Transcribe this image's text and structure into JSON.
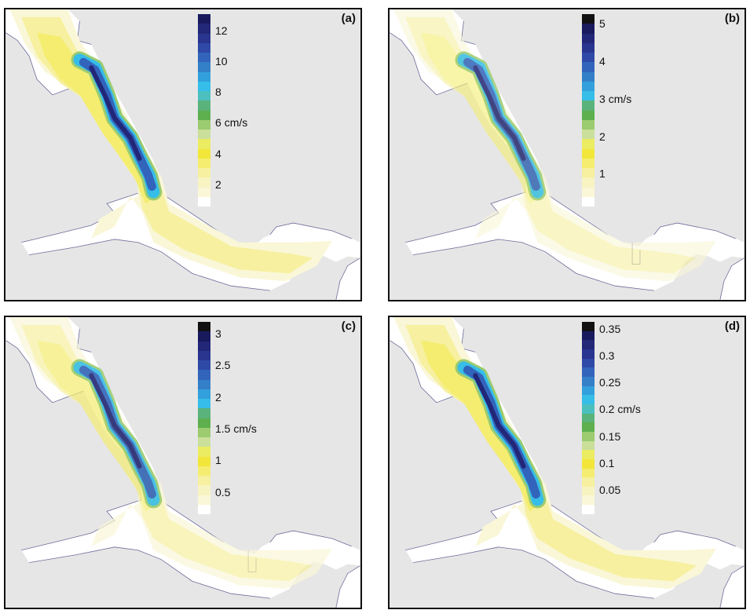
{
  "panels": [
    {
      "label": "(a)",
      "colorbar": {
        "colors": [
          "#191a5e",
          "#222778",
          "#2a3590",
          "#2f49a7",
          "#3264bb",
          "#337fc8",
          "#32a0dd",
          "#36bde8",
          "#4bc0bf",
          "#5ab37a",
          "#5eb04f",
          "#9ccb70",
          "#c9df9a",
          "#ecec62",
          "#f2e63a",
          "#f4ed70",
          "#f6f0a0",
          "#f8f4c2",
          "#faf7d8",
          "#ffffff"
        ],
        "ticks": [
          {
            "label": "12",
            "pos": 0.085
          },
          {
            "label": "10",
            "pos": 0.245
          },
          {
            "label": "8",
            "pos": 0.405
          },
          {
            "label": "6",
            "pos": 0.565
          },
          {
            "label": "4",
            "pos": 0.725
          },
          {
            "label": "2",
            "pos": 0.885
          }
        ],
        "unit": "cm/s",
        "unit_tick": "6"
      }
    },
    {
      "label": "(b)",
      "colorbar": {
        "colors": [
          "#111111",
          "#191a5e",
          "#222778",
          "#2a3590",
          "#2f49a7",
          "#3264bb",
          "#337fc8",
          "#32a0dd",
          "#36bde8",
          "#5ab37a",
          "#5eb04f",
          "#9ccb70",
          "#c9df9a",
          "#ecec62",
          "#f2e63a",
          "#f4ed70",
          "#f6f0a0",
          "#f8f4c2",
          "#faf7d8",
          "#ffffff"
        ],
        "ticks": [
          {
            "label": "5",
            "pos": 0.05
          },
          {
            "label": "4",
            "pos": 0.245
          },
          {
            "label": "3",
            "pos": 0.44
          },
          {
            "label": "2",
            "pos": 0.635
          },
          {
            "label": "1",
            "pos": 0.83
          }
        ],
        "unit": "cm/s",
        "unit_tick": "3"
      }
    },
    {
      "label": "(c)",
      "colorbar": {
        "colors": [
          "#111111",
          "#191a5e",
          "#222778",
          "#2a3590",
          "#2f49a7",
          "#3264bb",
          "#337fc8",
          "#32a0dd",
          "#36bde8",
          "#5ab37a",
          "#5eb04f",
          "#9ccb70",
          "#c9df9a",
          "#ecec62",
          "#f2e63a",
          "#f4ed70",
          "#f6f0a0",
          "#f8f4c2",
          "#faf7d8",
          "#ffffff"
        ],
        "ticks": [
          {
            "label": "3",
            "pos": 0.06
          },
          {
            "label": "2.5",
            "pos": 0.225
          },
          {
            "label": "2",
            "pos": 0.39
          },
          {
            "label": "1.5",
            "pos": 0.555
          },
          {
            "label": "1",
            "pos": 0.72
          },
          {
            "label": "0.5",
            "pos": 0.885
          }
        ],
        "unit": "cm/s",
        "unit_tick": "1.5"
      }
    },
    {
      "label": "(d)",
      "colorbar": {
        "colors": [
          "#111111",
          "#191a5e",
          "#222778",
          "#2a3590",
          "#2f49a7",
          "#3264bb",
          "#337fc8",
          "#32a0dd",
          "#36bde8",
          "#4bc0bf",
          "#5ab37a",
          "#5eb04f",
          "#9ccb70",
          "#c9df9a",
          "#ecec62",
          "#f2e63a",
          "#f4ed70",
          "#f6f0a0",
          "#f8f4c2",
          "#faf7d8",
          "#ffffff"
        ],
        "ticks": [
          {
            "label": "0.35",
            "pos": 0.035
          },
          {
            "label": "0.3",
            "pos": 0.175
          },
          {
            "label": "0.25",
            "pos": 0.315
          },
          {
            "label": "0.2",
            "pos": 0.455
          },
          {
            "label": "0.15",
            "pos": 0.595
          },
          {
            "label": "0.1",
            "pos": 0.735
          },
          {
            "label": "0.05",
            "pos": 0.875
          }
        ],
        "unit": "cm/s",
        "unit_tick": "0.2"
      }
    }
  ]
}
